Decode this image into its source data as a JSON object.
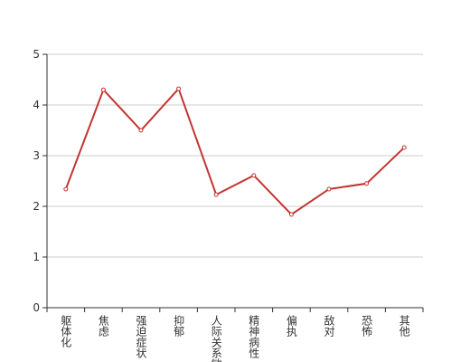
{
  "chart_data": {
    "type": "line",
    "categories": [
      "躯体化",
      "焦虑",
      "强迫症状",
      "抑郁",
      "人际关系敏感",
      "精神病性",
      "偏执",
      "敌对",
      "恐怖",
      "其他"
    ],
    "values": [
      2.34,
      4.3,
      3.5,
      4.32,
      2.23,
      2.61,
      1.84,
      2.34,
      2.45,
      3.16
    ],
    "color": "#c23531",
    "ylim": [
      0,
      5
    ],
    "yticks": [
      0,
      1,
      2,
      3,
      4,
      5
    ],
    "grid": true
  }
}
